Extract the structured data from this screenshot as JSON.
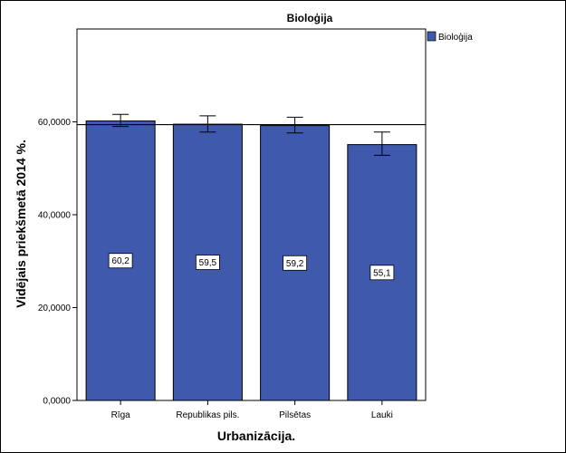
{
  "chart_data": {
    "type": "bar",
    "title": "Bioloģija",
    "xlabel": "Urbanizācija.",
    "ylabel": "Vidējais priekšmetā 2014 %.",
    "categories": [
      "Rīga",
      "Republikas pils.",
      "Pilsētas",
      "Lauki"
    ],
    "series": [
      {
        "name": "Bioloģija",
        "values": [
          60.2,
          59.5,
          59.2,
          55.1
        ],
        "data_labels": [
          "60,2",
          "59,5",
          "59,2",
          "55,1"
        ],
        "error_low": [
          59.0,
          57.8,
          57.6,
          52.8
        ],
        "error_high": [
          61.6,
          61.3,
          61.0,
          57.8
        ]
      }
    ],
    "reference_line": 59.4,
    "ylim": [
      0,
      80
    ],
    "yticks": [
      0,
      20,
      40,
      60
    ],
    "ytick_labels": [
      "0,0000",
      "20,0000",
      "40,0000",
      "60,0000"
    ],
    "grid": false,
    "legend_position": "top-right",
    "colors": {
      "bar": "#3f59ad",
      "bar_edge": "#000000",
      "plot_bg": "#ffffff"
    }
  }
}
